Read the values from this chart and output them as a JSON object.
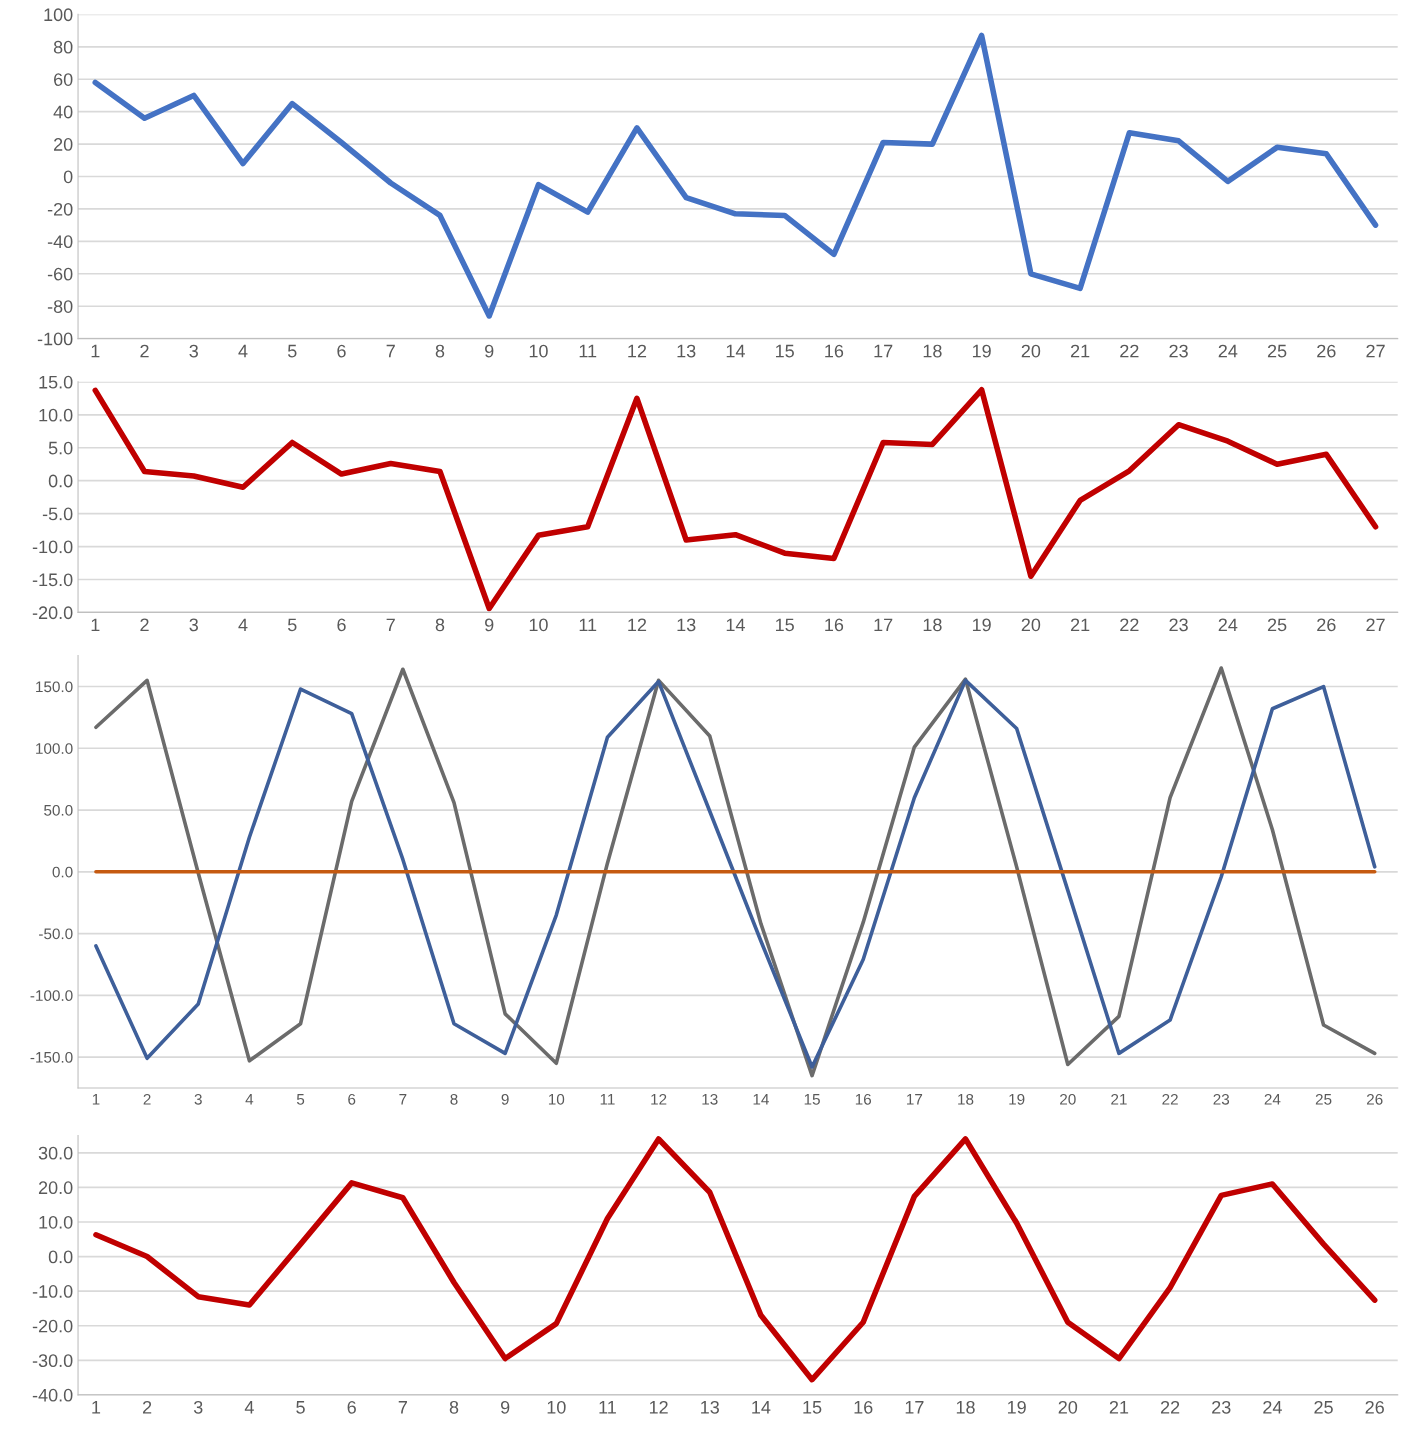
{
  "chart_data": [
    {
      "type": "line",
      "categories": [
        "1",
        "2",
        "3",
        "4",
        "5",
        "6",
        "7",
        "8",
        "9",
        "10",
        "11",
        "12",
        "13",
        "14",
        "15",
        "16",
        "17",
        "18",
        "19",
        "20",
        "21",
        "22",
        "23",
        "24",
        "25",
        "26",
        "27"
      ],
      "ylim": [
        -100,
        100
      ],
      "yticks": [
        -100,
        -80,
        -60,
        -40,
        -20,
        0,
        20,
        40,
        60,
        80,
        100
      ],
      "grid": "y",
      "series": [
        {
          "color": "#4472c4",
          "values": [
            58,
            36,
            50,
            8,
            45,
            21,
            -4,
            -24,
            -86,
            -5,
            -22,
            30,
            -13,
            -23,
            -24,
            -48,
            21,
            20,
            87,
            -60,
            -69,
            27,
            22,
            -3,
            18,
            14,
            -30
          ]
        }
      ]
    },
    {
      "type": "line",
      "categories": [
        "1",
        "2",
        "3",
        "4",
        "5",
        "6",
        "7",
        "8",
        "9",
        "10",
        "11",
        "12",
        "13",
        "14",
        "15",
        "16",
        "17",
        "18",
        "19",
        "20",
        "21",
        "22",
        "23",
        "24",
        "25",
        "26",
        "27"
      ],
      "ylim": [
        -20,
        15
      ],
      "yticks": [
        {
          "value": -20,
          "label": "-20.0"
        },
        {
          "value": -15,
          "label": "-15.0"
        },
        {
          "value": -10,
          "label": "-10.0"
        },
        {
          "value": -5,
          "label": "-5.0"
        },
        {
          "value": 0,
          "label": "0.0"
        },
        {
          "value": 5,
          "label": "5.0"
        },
        {
          "value": 10,
          "label": "10.0"
        },
        {
          "value": 15,
          "label": "15.0"
        }
      ],
      "grid": "y",
      "series": [
        {
          "color": "#c00000",
          "values": [
            13.7,
            1.4,
            0.7,
            -1,
            5.8,
            1,
            2.6,
            1.4,
            -19.4,
            -8.3,
            -7,
            12.5,
            -9,
            -8.2,
            -11,
            -11.8,
            5.8,
            5.5,
            13.8,
            -14.5,
            -3,
            1.5,
            8.5,
            6,
            2.5,
            4,
            -7
          ]
        }
      ]
    },
    {
      "type": "line",
      "categories": [
        "1",
        "2",
        "3",
        "4",
        "5",
        "6",
        "7",
        "8",
        "9",
        "10",
        "11",
        "12",
        "13",
        "14",
        "15",
        "16",
        "17",
        "18",
        "19",
        "20",
        "21",
        "22",
        "23",
        "24",
        "25",
        "26"
      ],
      "ylim": [
        -175,
        175
      ],
      "yticks": [
        {
          "value": -150,
          "label": "-150.0"
        },
        {
          "value": -100,
          "label": "-100.0"
        },
        {
          "value": -50,
          "label": "-50.0"
        },
        {
          "value": 0,
          "label": "0.0"
        },
        {
          "value": 50,
          "label": "50.0"
        },
        {
          "value": 100,
          "label": "100.0"
        },
        {
          "value": 150,
          "label": "150.0"
        }
      ],
      "grid": "y",
      "series": [
        {
          "color": "#6b6b6b",
          "values": [
            117,
            155,
            -1,
            -153,
            -123,
            57,
            164,
            56,
            -115,
            -155,
            7,
            155,
            110,
            -42,
            -165,
            -41,
            101,
            156,
            4,
            -156,
            -117,
            60,
            165,
            34,
            -124,
            -147
          ]
        },
        {
          "color": "#3e5f9a",
          "values": [
            -60,
            -151,
            -107,
            28,
            148,
            128,
            10,
            -123,
            -147,
            -35,
            109,
            154,
            49,
            -56,
            -158,
            -71,
            60,
            155,
            116,
            -15,
            -147,
            -120,
            -4,
            132,
            150,
            4
          ]
        },
        {
          "color": "#c55a11",
          "values": [
            0,
            0,
            0,
            0,
            0,
            0,
            0,
            0,
            0,
            0,
            0,
            0,
            0,
            0,
            0,
            0,
            0,
            0,
            0,
            0,
            0,
            0,
            0,
            0,
            0,
            0
          ]
        }
      ]
    },
    {
      "type": "line",
      "categories": [
        "1",
        "2",
        "3",
        "4",
        "5",
        "6",
        "7",
        "8",
        "9",
        "10",
        "11",
        "12",
        "13",
        "14",
        "15",
        "16",
        "17",
        "18",
        "19",
        "20",
        "21",
        "22",
        "23",
        "24",
        "25",
        "26"
      ],
      "ylim": [
        -40,
        35
      ],
      "yticks": [
        {
          "value": -40,
          "label": "-40.0"
        },
        {
          "value": -30,
          "label": "-30.0"
        },
        {
          "value": -20,
          "label": "-20.0"
        },
        {
          "value": -10,
          "label": "-10.0"
        },
        {
          "value": 0,
          "label": "0.0"
        },
        {
          "value": 10,
          "label": "10.0"
        },
        {
          "value": 20,
          "label": "20.0"
        },
        {
          "value": 30,
          "label": "30.0"
        }
      ],
      "grid": "y",
      "series": [
        {
          "color": "#c00000",
          "values": [
            6.3,
            0,
            -11.6,
            -14,
            3.6,
            21.3,
            17,
            -7.5,
            -29.5,
            -19.4,
            11,
            34,
            18.6,
            -17,
            -35.6,
            -19,
            17.4,
            34,
            9.7,
            -19,
            -29.5,
            -9,
            17.7,
            21,
            3.6,
            -12.6
          ]
        }
      ]
    }
  ]
}
